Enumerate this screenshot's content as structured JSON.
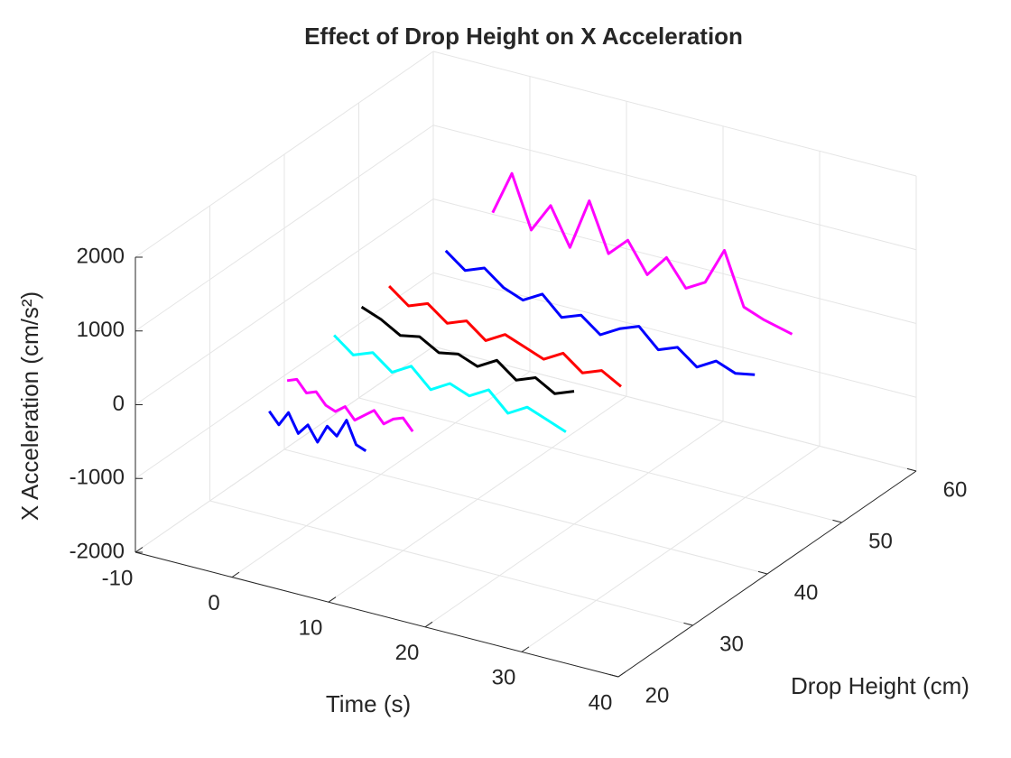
{
  "chart_data": {
    "type": "line3d",
    "title": "Effect of Drop Height  on  X Acceleration",
    "xlabel": "Time (s)",
    "ylabel": "Drop Height (cm)",
    "zlabel": "X Acceleration (cm/s²)",
    "xlim": [
      -10,
      40
    ],
    "xticks": [
      -10,
      0,
      10,
      20,
      30,
      40
    ],
    "ylim": [
      20,
      60
    ],
    "yticks": [
      20,
      30,
      40,
      50,
      60
    ],
    "zlim": [
      -2000,
      2000
    ],
    "zticks": [
      -2000,
      -1000,
      0,
      1000,
      2000
    ],
    "grid": true,
    "series": [
      {
        "color": "#0000ff",
        "drop_height": 25,
        "x": [
          0,
          1,
          2,
          3,
          4,
          5,
          6,
          7,
          8,
          9,
          10
        ],
        "values": [
          -100,
          -250,
          -50,
          -300,
          -150,
          -350,
          -100,
          -200,
          50,
          -250,
          -300
        ]
      },
      {
        "color": "#ff00ff",
        "drop_height": 30,
        "x": [
          -2,
          -1,
          0,
          1,
          2,
          3,
          4,
          5,
          6,
          7,
          8,
          9,
          10,
          11
        ],
        "values": [
          -100,
          -50,
          -200,
          -150,
          -300,
          -350,
          -250,
          -400,
          -300,
          -200,
          -350,
          -250,
          -200,
          -350
        ]
      },
      {
        "color": "#00ffff",
        "drop_height": 35,
        "x": [
          -1,
          1,
          3,
          5,
          7,
          9,
          11,
          13,
          15,
          17,
          19,
          21,
          23
        ],
        "values": [
          200,
          0,
          100,
          -100,
          50,
          -200,
          -50,
          -150,
          0,
          -250,
          -100,
          -200,
          -300
        ]
      },
      {
        "color": "#000000",
        "drop_height": 40,
        "x": [
          -2,
          0,
          2,
          4,
          6,
          8,
          10,
          12,
          14,
          16,
          18,
          20
        ],
        "values": [
          200,
          100,
          -50,
          0,
          -150,
          -100,
          -200,
          -50,
          -250,
          -150,
          -300,
          -200
        ]
      },
      {
        "color": "#ff0000",
        "drop_height": 45,
        "x": [
          -3,
          -1,
          1,
          3,
          5,
          7,
          9,
          11,
          13,
          15,
          17,
          19,
          21
        ],
        "values": [
          100,
          -100,
          0,
          -200,
          -100,
          -300,
          -150,
          -250,
          -350,
          -200,
          -400,
          -300,
          -450
        ]
      },
      {
        "color": "#0000ff",
        "drop_height": 50,
        "x": [
          -1,
          1,
          3,
          5,
          7,
          9,
          11,
          13,
          15,
          17,
          19,
          21,
          23,
          25,
          27,
          29,
          31
        ],
        "values": [
          300,
          100,
          200,
          0,
          -100,
          50,
          -200,
          -100,
          -300,
          -150,
          -50,
          -300,
          -200,
          -400,
          -250,
          -350,
          -300
        ]
      },
      {
        "color": "#ff00ff",
        "drop_height": 55,
        "x": [
          0,
          2,
          4,
          6,
          8,
          10,
          12,
          14,
          16,
          18,
          20,
          22,
          24,
          26,
          28,
          31
        ],
        "values": [
          500,
          1100,
          400,
          800,
          300,
          1000,
          350,
          600,
          200,
          500,
          150,
          300,
          800,
          100,
          0,
          -100
        ]
      }
    ]
  }
}
